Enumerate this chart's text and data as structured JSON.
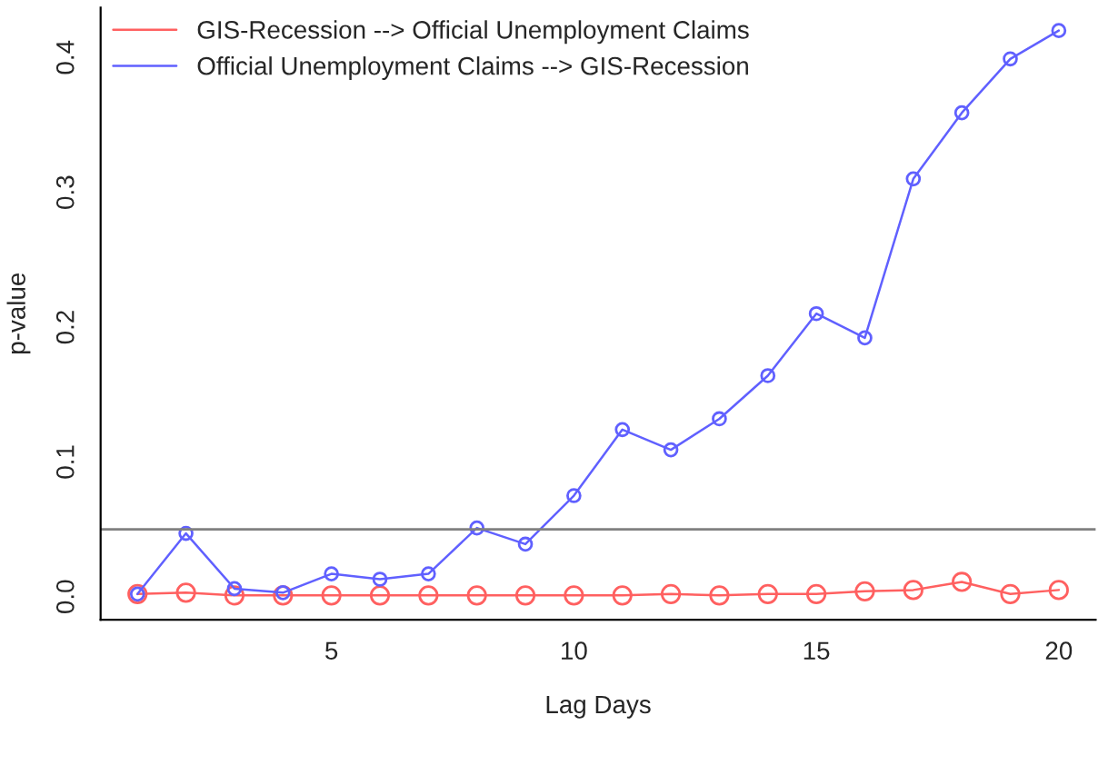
{
  "chart_data": {
    "type": "line",
    "xlabel": "Lag Days",
    "ylabel": "p-value",
    "x": [
      1,
      2,
      3,
      4,
      5,
      6,
      7,
      8,
      9,
      10,
      11,
      12,
      13,
      14,
      15,
      16,
      17,
      18,
      19,
      20
    ],
    "series": [
      {
        "name": "GIS-Recession --> Official Unemployment Claims",
        "color": "#ff6060",
        "values": [
          0.002,
          0.003,
          0.001,
          0.001,
          0.001,
          0.001,
          0.001,
          0.001,
          0.001,
          0.001,
          0.001,
          0.002,
          0.001,
          0.002,
          0.002,
          0.004,
          0.005,
          0.011,
          0.002,
          0.005
        ]
      },
      {
        "name": "Official Unemployment Claims --> GIS-Recession",
        "color": "#6060ff",
        "values": [
          0.002,
          0.047,
          0.006,
          0.003,
          0.017,
          0.013,
          0.017,
          0.051,
          0.039,
          0.075,
          0.124,
          0.109,
          0.132,
          0.164,
          0.21,
          0.192,
          0.31,
          0.359,
          0.399,
          0.42
        ]
      }
    ],
    "xlim": [
      0.24,
      20.76
    ],
    "xticks": [
      5,
      10,
      15,
      20
    ],
    "ylim": [
      -0.017,
      0.437
    ],
    "yticks": [
      {
        "value": 0,
        "label": "0.0"
      },
      0.1,
      0.2,
      0.3,
      0.4
    ],
    "ref_lines": [
      {
        "axis": "y",
        "value": 0.05,
        "color": "#808080"
      }
    ],
    "marker": "circle",
    "line_style": "solid",
    "grid": false,
    "legend": "top left"
  }
}
